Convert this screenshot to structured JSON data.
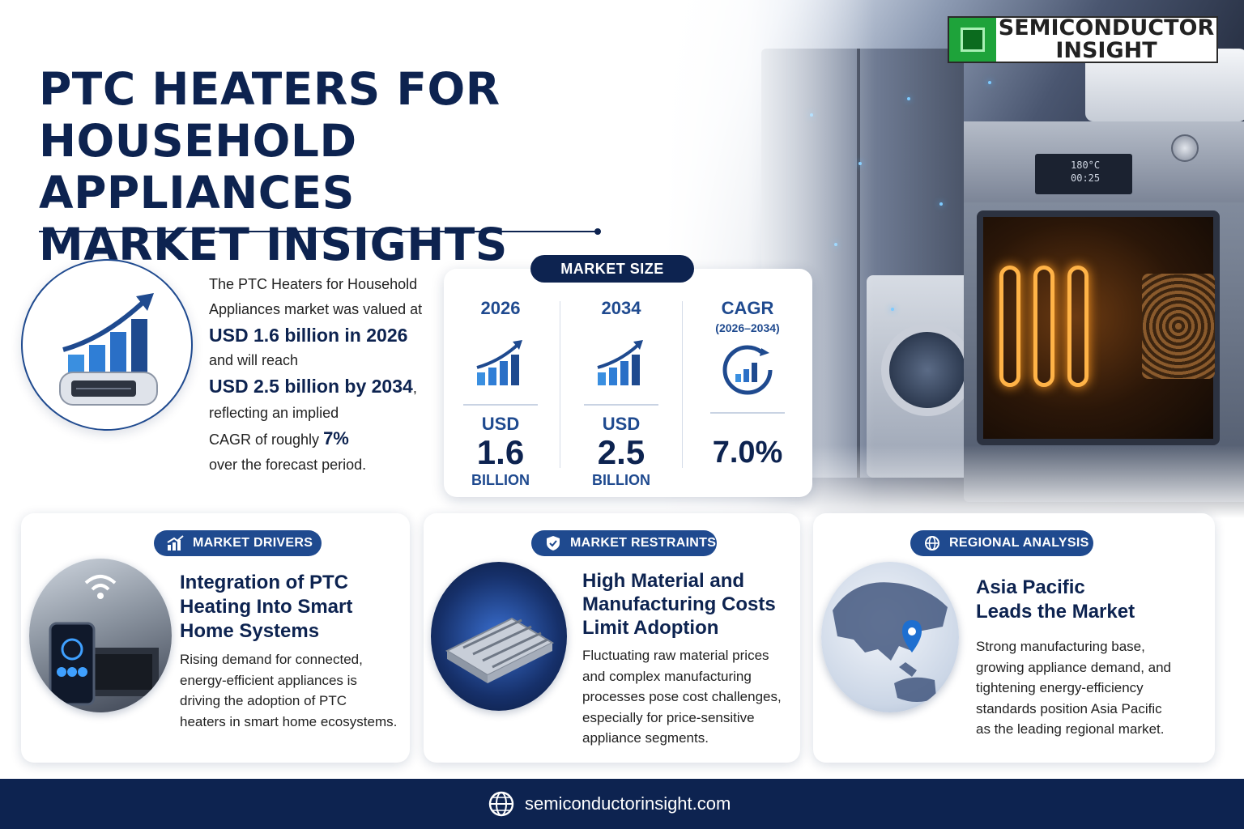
{
  "brand": {
    "logo_text_line1": "SEMICONDUCTOR",
    "logo_text_line2": "INSIGHT"
  },
  "header": {
    "title_line1": "PTC HEATERS FOR",
    "title_line2": "HOUSEHOLD APPLIANCES",
    "title_line3": "MARKET INSIGHTS"
  },
  "hero": {
    "oven_display_temp": "180°C",
    "oven_display_time": "00:25"
  },
  "intro": {
    "line1": "The PTC Heaters for Household",
    "line2": "Appliances market was valued at",
    "value_2026": "USD 1.6 billion in 2026",
    "line3": "and will reach",
    "value_2034": "USD 2.5 billion by 2034",
    "comma": ",",
    "line4": "reflecting an implied",
    "line5_prefix": "CAGR of roughly ",
    "cagr_short": "7%",
    "line6": "over the forecast period."
  },
  "market_size": {
    "label": "MARKET SIZE",
    "col1": {
      "year": "2026",
      "currency": "USD",
      "value": "1.6",
      "unit": "BILLION"
    },
    "col2": {
      "year": "2034",
      "currency": "USD",
      "value": "2.5",
      "unit": "BILLION"
    },
    "col3": {
      "label": "CAGR",
      "range": "(2026–2034)",
      "value": "7.0%"
    }
  },
  "drivers": {
    "label": "MARKET DRIVERS",
    "title_line1": "Integration of PTC",
    "title_line2": "Heating Into Smart",
    "title_line3": "Home Systems",
    "body": [
      "Rising demand for connected,",
      "energy-efficient appliances is",
      "driving the adoption of PTC",
      "heaters in smart home ecosystems."
    ]
  },
  "restraints": {
    "label": "MARKET RESTRAINTS",
    "title_line1": "High Material and",
    "title_line2": "Manufacturing Costs",
    "title_line3": "Limit Adoption",
    "body": [
      "Fluctuating raw material prices",
      "and complex manufacturing",
      "processes pose cost challenges,",
      "especially for price-sensitive",
      "appliance segments."
    ]
  },
  "regional": {
    "label": "REGIONAL ANALYSIS",
    "title_line1": "Asia Pacific",
    "title_line2": "Leads the Market",
    "body": [
      "Strong manufacturing base,",
      "growing appliance demand, and",
      "tightening energy-efficiency",
      "standards position Asia Pacific",
      "as the leading regional market."
    ]
  },
  "footer": {
    "url": "semiconductorinsight.com"
  },
  "colors": {
    "navy": "#0d2350",
    "blue": "#1f4a8f",
    "accent": "#1e6fd0"
  },
  "icons": [
    "chart-up-icon",
    "shield-icon",
    "globe-icon",
    "location-pin-icon",
    "wifi-icon",
    "chip-icon"
  ]
}
